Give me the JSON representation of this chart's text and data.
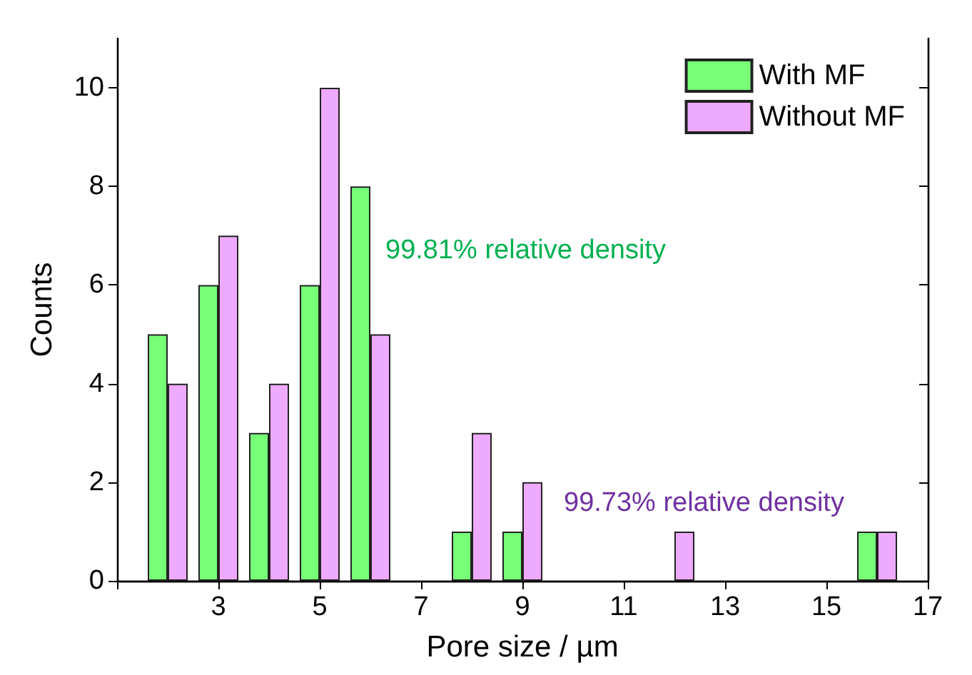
{
  "chart_data": {
    "type": "bar",
    "xlabel": "Pore size / µm",
    "ylabel": "Counts",
    "x": [
      2,
      3,
      4,
      5,
      6,
      8,
      9,
      12,
      16
    ],
    "series": [
      {
        "name": "With MF",
        "color": "#77ff77",
        "values": [
          5,
          6,
          3,
          6,
          8,
          1,
          1,
          null,
          1
        ]
      },
      {
        "name": "Without MF",
        "color": "#eeaaff",
        "values": [
          4,
          7,
          4,
          10,
          5,
          3,
          2,
          1,
          1
        ]
      }
    ],
    "xlim": [
      1,
      17
    ],
    "xticks": [
      {
        "value": 1,
        "label": null
      },
      3,
      5,
      7,
      9,
      11,
      13,
      15,
      17
    ],
    "ylim": [
      0,
      11
    ],
    "yticks": [
      0,
      2,
      4,
      6,
      8,
      10
    ],
    "annotations": [
      "99.81% relative density",
      "99.73% relative density"
    ],
    "legend": "top right",
    "grid": false
  }
}
